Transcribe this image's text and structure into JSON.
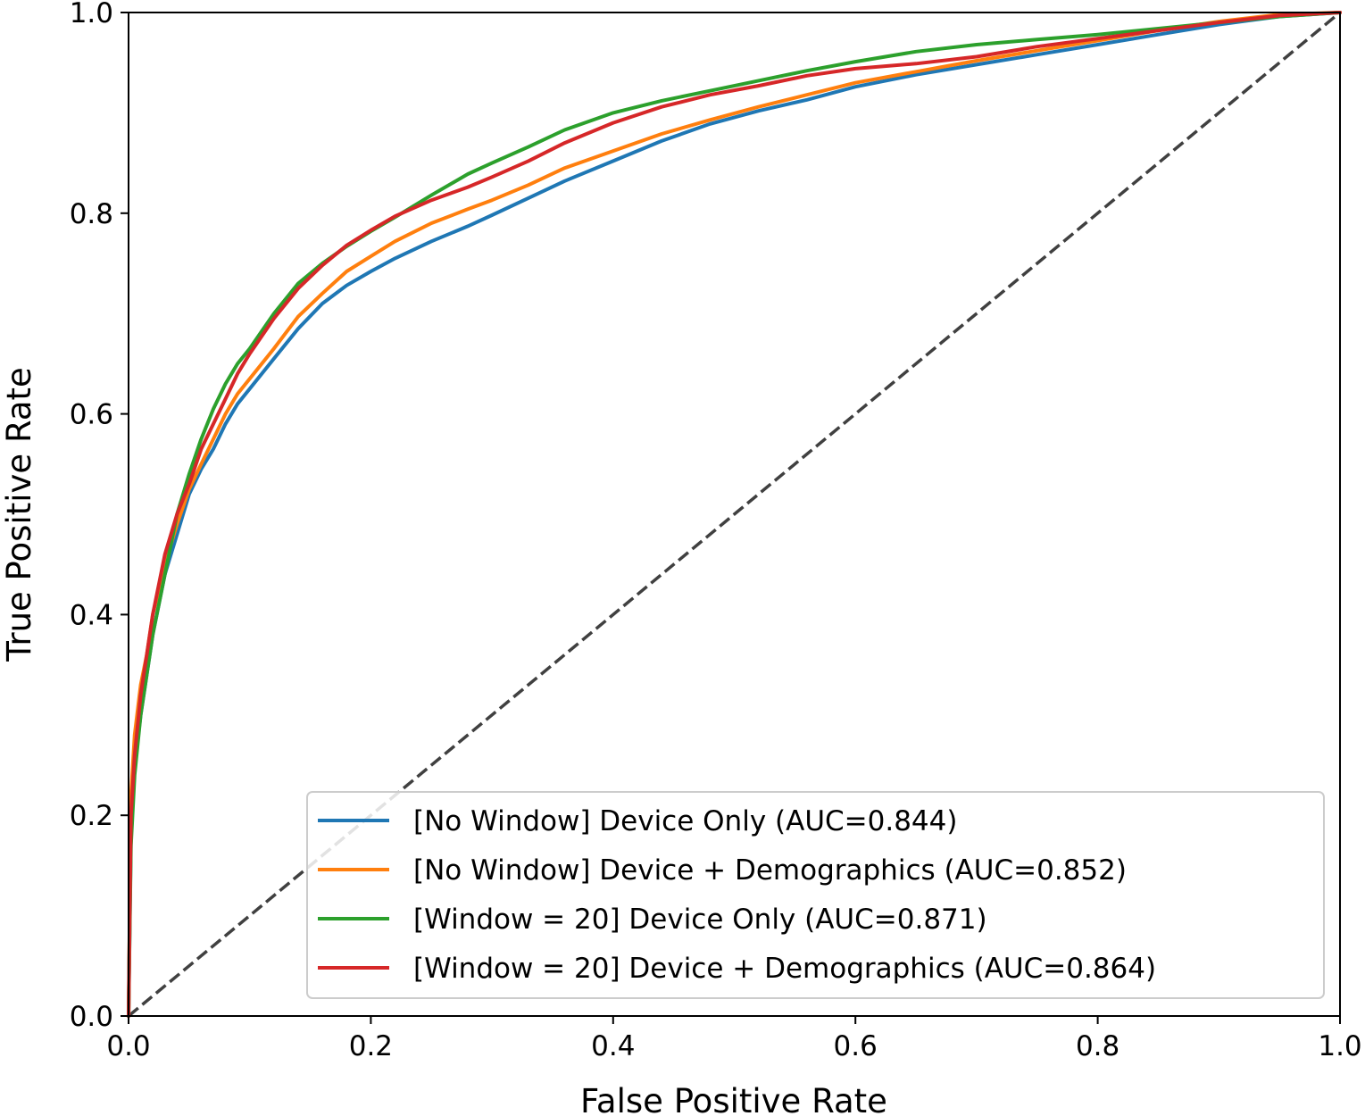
{
  "chart_data": {
    "type": "line",
    "title": "",
    "xlabel": "False Positive Rate",
    "ylabel": "True Positive Rate",
    "xlim": [
      0,
      1
    ],
    "ylim": [
      0,
      1
    ],
    "x_ticks": [
      "0.0",
      "0.2",
      "0.4",
      "0.6",
      "0.8",
      "1.0"
    ],
    "y_ticks": [
      "0.0",
      "0.2",
      "0.4",
      "0.6",
      "0.8",
      "1.0"
    ],
    "grid": false,
    "legend_position": "lower-right",
    "series": [
      {
        "name": "[No Window] Device Only (AUC=0.844)",
        "color": "#1f77b4",
        "x": [
          0,
          0.002,
          0.005,
          0.01,
          0.015,
          0.02,
          0.03,
          0.04,
          0.05,
          0.06,
          0.07,
          0.08,
          0.09,
          0.1,
          0.12,
          0.14,
          0.16,
          0.18,
          0.2,
          0.22,
          0.25,
          0.28,
          0.3,
          0.33,
          0.36,
          0.4,
          0.44,
          0.48,
          0.52,
          0.56,
          0.6,
          0.65,
          0.7,
          0.75,
          0.8,
          0.85,
          0.9,
          0.95,
          1.0
        ],
        "y": [
          0,
          0.18,
          0.25,
          0.3,
          0.34,
          0.38,
          0.44,
          0.48,
          0.52,
          0.545,
          0.565,
          0.59,
          0.61,
          0.625,
          0.655,
          0.685,
          0.71,
          0.728,
          0.742,
          0.755,
          0.772,
          0.787,
          0.798,
          0.815,
          0.832,
          0.852,
          0.872,
          0.889,
          0.902,
          0.913,
          0.926,
          0.938,
          0.948,
          0.958,
          0.968,
          0.978,
          0.988,
          0.996,
          1.0
        ]
      },
      {
        "name": "[No Window] Device + Demographics (AUC=0.852)",
        "color": "#ff7f0e",
        "x": [
          0,
          0.002,
          0.005,
          0.01,
          0.015,
          0.02,
          0.03,
          0.04,
          0.05,
          0.06,
          0.07,
          0.08,
          0.09,
          0.1,
          0.12,
          0.14,
          0.16,
          0.18,
          0.2,
          0.22,
          0.25,
          0.28,
          0.3,
          0.33,
          0.36,
          0.4,
          0.44,
          0.48,
          0.52,
          0.56,
          0.6,
          0.65,
          0.7,
          0.75,
          0.8,
          0.85,
          0.9,
          0.95,
          1.0
        ],
        "y": [
          0,
          0.22,
          0.28,
          0.33,
          0.36,
          0.4,
          0.45,
          0.49,
          0.525,
          0.55,
          0.575,
          0.6,
          0.62,
          0.635,
          0.665,
          0.697,
          0.72,
          0.742,
          0.757,
          0.772,
          0.79,
          0.804,
          0.813,
          0.828,
          0.845,
          0.862,
          0.879,
          0.893,
          0.906,
          0.918,
          0.93,
          0.941,
          0.952,
          0.962,
          0.972,
          0.982,
          0.991,
          0.998,
          1.0
        ]
      },
      {
        "name": "[Window = 20] Device Only (AUC=0.871)",
        "color": "#2ca02c",
        "x": [
          0,
          0.002,
          0.005,
          0.01,
          0.015,
          0.02,
          0.03,
          0.04,
          0.05,
          0.06,
          0.07,
          0.08,
          0.09,
          0.1,
          0.12,
          0.14,
          0.16,
          0.18,
          0.2,
          0.22,
          0.25,
          0.28,
          0.3,
          0.33,
          0.36,
          0.4,
          0.44,
          0.48,
          0.52,
          0.56,
          0.6,
          0.65,
          0.7,
          0.75,
          0.8,
          0.85,
          0.9,
          0.95,
          1.0
        ],
        "y": [
          0,
          0.17,
          0.24,
          0.3,
          0.34,
          0.38,
          0.44,
          0.5,
          0.54,
          0.575,
          0.605,
          0.63,
          0.65,
          0.665,
          0.7,
          0.73,
          0.75,
          0.767,
          0.782,
          0.796,
          0.818,
          0.839,
          0.85,
          0.866,
          0.883,
          0.9,
          0.912,
          0.922,
          0.932,
          0.942,
          0.951,
          0.961,
          0.968,
          0.973,
          0.978,
          0.984,
          0.99,
          0.996,
          1.0
        ]
      },
      {
        "name": "[Window = 20] Device + Demographics (AUC=0.864)",
        "color": "#d62728",
        "x": [
          0,
          0.002,
          0.005,
          0.01,
          0.015,
          0.02,
          0.03,
          0.04,
          0.05,
          0.06,
          0.07,
          0.08,
          0.09,
          0.1,
          0.12,
          0.14,
          0.16,
          0.18,
          0.2,
          0.22,
          0.25,
          0.28,
          0.3,
          0.33,
          0.36,
          0.4,
          0.44,
          0.48,
          0.52,
          0.56,
          0.6,
          0.65,
          0.7,
          0.75,
          0.8,
          0.85,
          0.9,
          0.95,
          1.0
        ],
        "y": [
          0,
          0.2,
          0.26,
          0.32,
          0.36,
          0.4,
          0.46,
          0.5,
          0.53,
          0.565,
          0.59,
          0.615,
          0.64,
          0.66,
          0.695,
          0.725,
          0.748,
          0.768,
          0.783,
          0.797,
          0.813,
          0.826,
          0.836,
          0.852,
          0.87,
          0.89,
          0.906,
          0.918,
          0.927,
          0.937,
          0.944,
          0.949,
          0.956,
          0.966,
          0.974,
          0.982,
          0.99,
          0.997,
          1.0
        ]
      }
    ],
    "reference_line": {
      "x": [
        0,
        1
      ],
      "y": [
        0,
        1
      ],
      "color": "#404040",
      "style": "dashed"
    }
  }
}
